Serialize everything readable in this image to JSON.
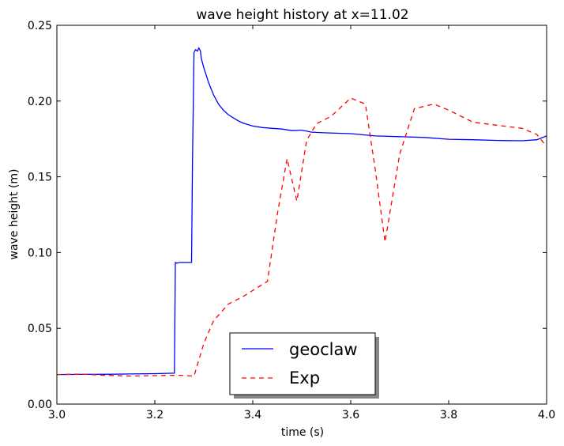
{
  "chart_data": {
    "type": "line",
    "title": "wave height history at x=11.02",
    "xlabel": "time (s)",
    "ylabel": "wave height (m)",
    "xlim": [
      3.0,
      4.0
    ],
    "ylim": [
      0.0,
      0.25
    ],
    "xticks": [
      "3.0",
      "3.2",
      "3.4",
      "3.6",
      "3.8",
      "4.0"
    ],
    "yticks": [
      "0.00",
      "0.05",
      "0.10",
      "0.15",
      "0.20",
      "0.25"
    ],
    "grid": false,
    "legend_position": "lower-center",
    "series": [
      {
        "name": "geoclaw",
        "color": "#0000ff",
        "style": "solid",
        "x": [
          3.0,
          3.05,
          3.1,
          3.15,
          3.2,
          3.24,
          3.242,
          3.245,
          3.25,
          3.26,
          3.27,
          3.275,
          3.277,
          3.28,
          3.283,
          3.287,
          3.29,
          3.293,
          3.295,
          3.3,
          3.31,
          3.32,
          3.33,
          3.34,
          3.35,
          3.36,
          3.37,
          3.38,
          3.39,
          3.4,
          3.42,
          3.44,
          3.46,
          3.48,
          3.5,
          3.52,
          3.55,
          3.6,
          3.65,
          3.7,
          3.75,
          3.8,
          3.85,
          3.9,
          3.95,
          3.98,
          4.0
        ],
        "y": [
          0.0195,
          0.0196,
          0.0197,
          0.0199,
          0.0201,
          0.0204,
          0.0935,
          0.093,
          0.0935,
          0.0935,
          0.0935,
          0.0935,
          0.16,
          0.232,
          0.234,
          0.233,
          0.235,
          0.233,
          0.228,
          0.222,
          0.212,
          0.204,
          0.198,
          0.194,
          0.191,
          0.189,
          0.187,
          0.1855,
          0.1845,
          0.1835,
          0.1825,
          0.182,
          0.1815,
          0.1805,
          0.1808,
          0.1795,
          0.179,
          0.1785,
          0.177,
          0.1765,
          0.176,
          0.1748,
          0.1745,
          0.174,
          0.1738,
          0.1745,
          0.177
        ]
      },
      {
        "name": "Exp",
        "color": "#ff0000",
        "style": "dashed",
        "x": [
          3.0,
          3.05,
          3.1,
          3.15,
          3.2,
          3.25,
          3.28,
          3.3,
          3.32,
          3.35,
          3.38,
          3.43,
          3.45,
          3.47,
          3.49,
          3.51,
          3.53,
          3.56,
          3.6,
          3.63,
          3.65,
          3.67,
          3.7,
          3.73,
          3.77,
          3.8,
          3.85,
          3.9,
          3.95,
          3.98,
          4.0
        ],
        "y": [
          0.0195,
          0.0198,
          0.019,
          0.0185,
          0.0188,
          0.019,
          0.0185,
          0.04,
          0.055,
          0.066,
          0.071,
          0.081,
          0.125,
          0.162,
          0.134,
          0.174,
          0.185,
          0.19,
          0.202,
          0.198,
          0.155,
          0.107,
          0.165,
          0.195,
          0.198,
          0.194,
          0.186,
          0.184,
          0.182,
          0.178,
          0.17
        ]
      }
    ]
  }
}
